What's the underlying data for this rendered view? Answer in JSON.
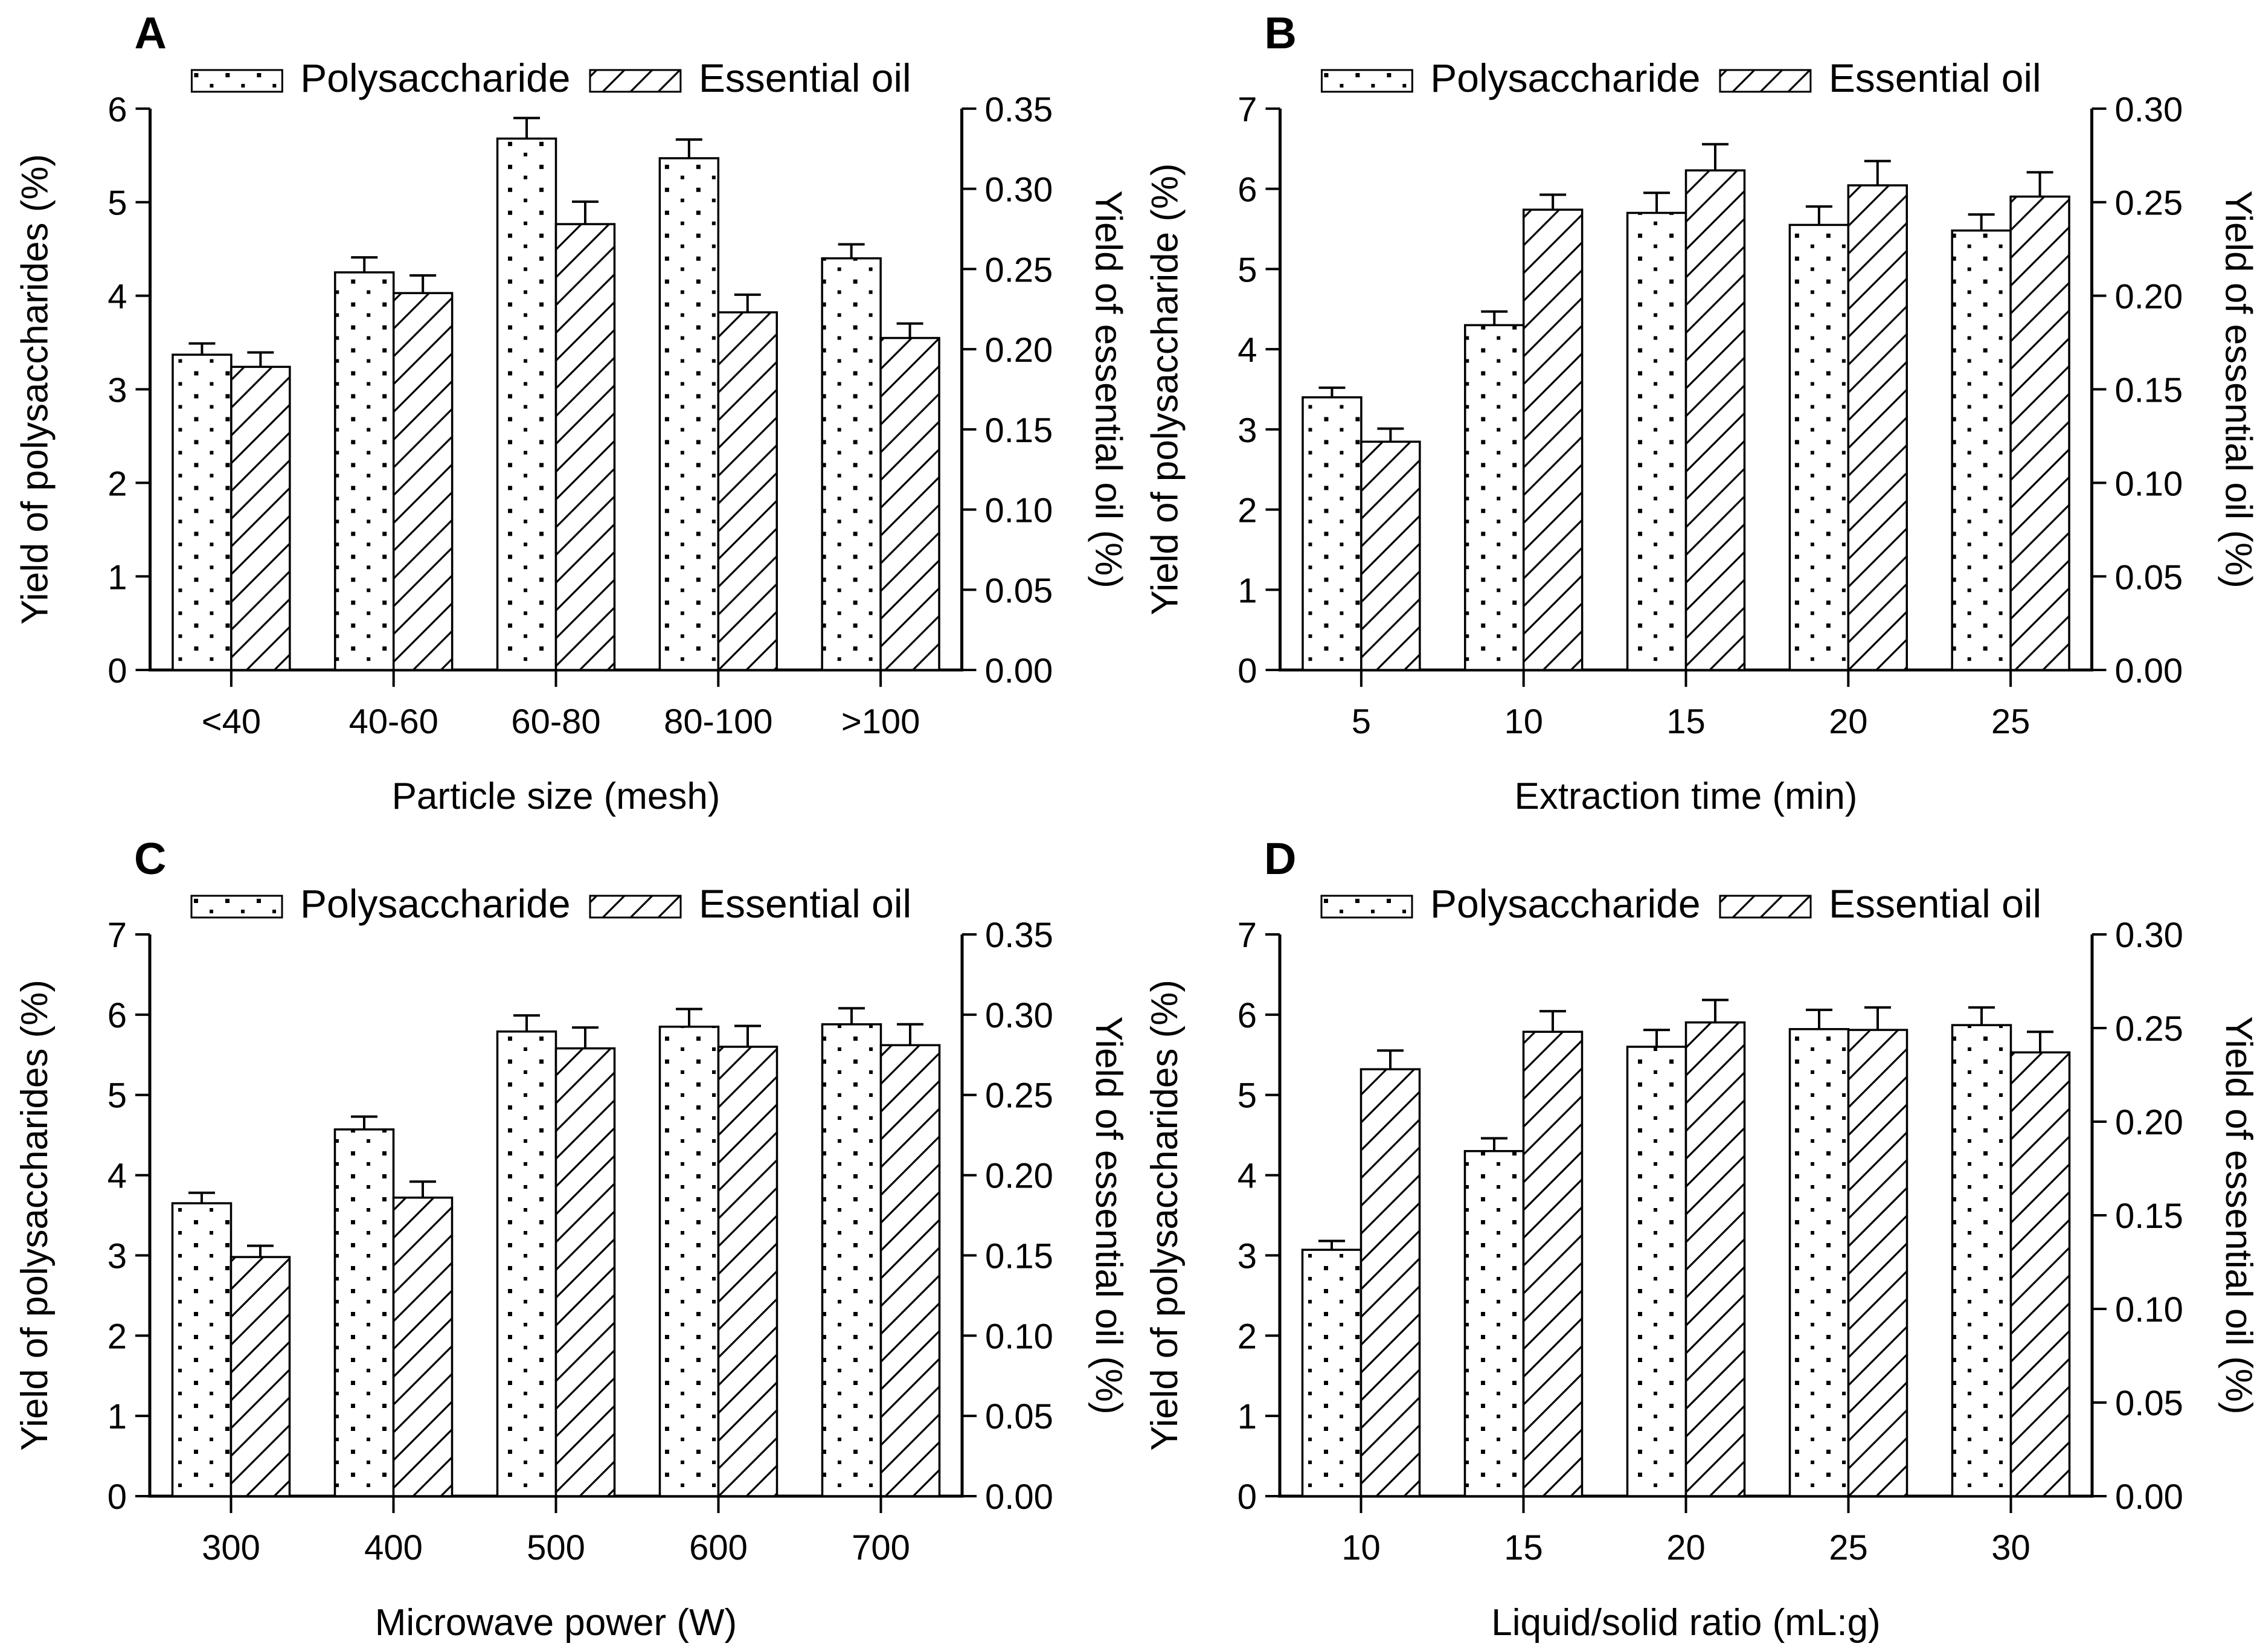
{
  "figure": {
    "background": "#ffffff",
    "ink_color": "#000000",
    "legend": {
      "items": [
        {
          "label": "Polysaccharide",
          "pattern": "dots"
        },
        {
          "label": "Essential oil",
          "pattern": "hatch"
        }
      ]
    }
  },
  "chart_data": [
    {
      "panel": "A",
      "type": "bar",
      "title": "",
      "xlabel": "Particle size (mesh)",
      "ylabel_left": "Yield of polysaccharides (%)",
      "ylabel_right": "Yield of essential oil (%)",
      "ylim_left": [
        0,
        6
      ],
      "ytick_step_left": 1,
      "ylim_right": [
        0,
        0.35
      ],
      "ytick_step_right": 0.05,
      "grid": false,
      "legend_position": "top",
      "categories": [
        "<40",
        "40-60",
        "60-80",
        "80-100",
        ">100"
      ],
      "series": [
        {
          "name": "Polysaccharide",
          "axis": "left",
          "pattern": "dots",
          "values": [
            3.37,
            4.25,
            5.68,
            5.47,
            4.4
          ],
          "errors": [
            0.12,
            0.16,
            0.22,
            0.2,
            0.15
          ]
        },
        {
          "name": "Essential oil",
          "axis": "right",
          "pattern": "hatch",
          "values": [
            0.189,
            0.235,
            0.278,
            0.223,
            0.207
          ],
          "errors": [
            0.009,
            0.011,
            0.014,
            0.011,
            0.009
          ]
        }
      ]
    },
    {
      "panel": "B",
      "type": "bar",
      "title": "",
      "xlabel": "Extraction time (min)",
      "ylabel_left": "Yield of polysaccharide (%)",
      "ylabel_right": "Yield of essential oil (%)",
      "ylim_left": [
        0,
        7
      ],
      "ytick_step_left": 1,
      "ylim_right": [
        0,
        0.3
      ],
      "ytick_step_right": 0.05,
      "grid": false,
      "legend_position": "top",
      "categories": [
        "5",
        "10",
        "15",
        "20",
        "25"
      ],
      "series": [
        {
          "name": "Polysaccharide",
          "axis": "left",
          "pattern": "dots",
          "values": [
            3.4,
            4.3,
            5.7,
            5.55,
            5.48
          ],
          "errors": [
            0.12,
            0.17,
            0.25,
            0.23,
            0.2
          ]
        },
        {
          "name": "Essential oil",
          "axis": "right",
          "pattern": "hatch",
          "values": [
            0.122,
            0.246,
            0.267,
            0.259,
            0.253
          ],
          "errors": [
            0.007,
            0.008,
            0.014,
            0.013,
            0.013
          ]
        }
      ]
    },
    {
      "panel": "C",
      "type": "bar",
      "title": "",
      "xlabel": "Microwave power (W)",
      "ylabel_left": "Yield of polysaccharides (%)",
      "ylabel_right": "Yield of essential oil (%)",
      "ylim_left": [
        0,
        7
      ],
      "ytick_step_left": 1,
      "ylim_right": [
        0,
        0.35
      ],
      "ytick_step_right": 0.05,
      "grid": false,
      "legend_position": "top",
      "categories": [
        "300",
        "400",
        "500",
        "600",
        "700"
      ],
      "series": [
        {
          "name": "Polysaccharide",
          "axis": "left",
          "pattern": "dots",
          "values": [
            3.65,
            4.57,
            5.79,
            5.85,
            5.88
          ],
          "errors": [
            0.13,
            0.16,
            0.2,
            0.22,
            0.2
          ]
        },
        {
          "name": "Essential oil",
          "axis": "right",
          "pattern": "hatch",
          "values": [
            0.149,
            0.186,
            0.279,
            0.28,
            0.281
          ],
          "errors": [
            0.007,
            0.01,
            0.013,
            0.013,
            0.013
          ]
        }
      ]
    },
    {
      "panel": "D",
      "type": "bar",
      "title": "",
      "xlabel": "Liquid/solid ratio (mL:g)",
      "ylabel_left": "Yield of polysaccharides (%)",
      "ylabel_right": "Yield of essential oil (%)",
      "ylim_left": [
        0,
        7
      ],
      "ytick_step_left": 1,
      "ylim_right": [
        0,
        0.3
      ],
      "ytick_step_right": 0.05,
      "grid": false,
      "legend_position": "top",
      "categories": [
        "10",
        "15",
        "20",
        "25",
        "30"
      ],
      "series": [
        {
          "name": "Polysaccharide",
          "axis": "left",
          "pattern": "dots",
          "values": [
            3.07,
            4.3,
            5.6,
            5.82,
            5.87
          ],
          "errors": [
            0.11,
            0.16,
            0.21,
            0.24,
            0.22
          ]
        },
        {
          "name": "Essential oil",
          "axis": "right",
          "pattern": "hatch",
          "values": [
            0.228,
            0.248,
            0.253,
            0.249,
            0.237
          ],
          "errors": [
            0.01,
            0.011,
            0.012,
            0.012,
            0.011
          ]
        }
      ]
    }
  ]
}
